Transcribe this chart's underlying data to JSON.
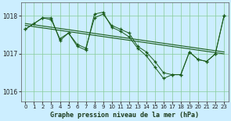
{
  "title": "Graphe pression niveau de la mer (hPa)",
  "bg_color": "#cceeff",
  "line_color": "#1a5c1a",
  "grid_color": "#88cc99",
  "xlim": [
    -0.5,
    23.5
  ],
  "ylim": [
    1015.75,
    1018.35
  ],
  "yticks": [
    1016,
    1017,
    1018
  ],
  "xticks": [
    0,
    1,
    2,
    3,
    4,
    5,
    6,
    7,
    8,
    9,
    10,
    11,
    12,
    13,
    14,
    15,
    16,
    17,
    18,
    19,
    20,
    21,
    22,
    23
  ],
  "series1_x": [
    0,
    1,
    2,
    3,
    4,
    5,
    6,
    7,
    8,
    9,
    10,
    11,
    12,
    13,
    14,
    15,
    16,
    17,
    18,
    19,
    20,
    21,
    22,
    23
  ],
  "series1_y": [
    1017.65,
    1017.8,
    1017.95,
    1017.9,
    1017.4,
    1017.55,
    1017.25,
    1017.15,
    1017.95,
    1018.05,
    1017.75,
    1017.65,
    1017.55,
    1017.2,
    1017.05,
    1016.8,
    1016.5,
    1016.45,
    1016.45,
    1017.05,
    1016.85,
    1016.8,
    1017.0,
    1018.0
  ],
  "series2_x": [
    0,
    2,
    3,
    4,
    5,
    6,
    7,
    8,
    9,
    10,
    11,
    12,
    13,
    14,
    15,
    16,
    17,
    18,
    19,
    20,
    21,
    22,
    23
  ],
  "series2_y": [
    1017.65,
    1017.95,
    1017.95,
    1017.35,
    1017.55,
    1017.2,
    1017.1,
    1018.05,
    1018.1,
    1017.7,
    1017.6,
    1017.45,
    1017.15,
    1016.95,
    1016.65,
    1016.35,
    1016.45,
    1016.45,
    1017.05,
    1016.85,
    1016.8,
    1017.0,
    1018.0
  ],
  "trend_x": [
    0,
    23
  ],
  "trend_y": [
    1017.8,
    1017.05
  ],
  "trend2_x": [
    0,
    23
  ],
  "trend2_y": [
    1017.75,
    1017.0
  ]
}
